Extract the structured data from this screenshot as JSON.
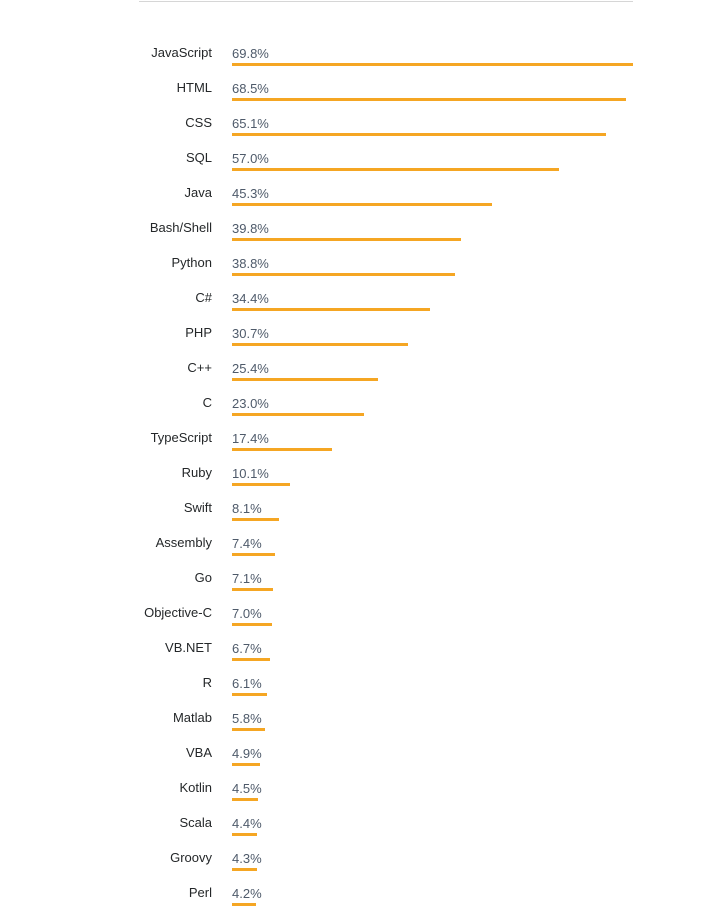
{
  "chart_data": {
    "type": "bar",
    "orientation": "horizontal",
    "title": "",
    "xlabel": "",
    "ylabel": "",
    "grid": false,
    "legend": null,
    "bar_color": "#f5a623",
    "categories": [
      "JavaScript",
      "HTML",
      "CSS",
      "SQL",
      "Java",
      "Bash/Shell",
      "Python",
      "C#",
      "PHP",
      "C++",
      "C",
      "TypeScript",
      "Ruby",
      "Swift",
      "Assembly",
      "Go",
      "Objective-C",
      "VB.NET",
      "R",
      "Matlab",
      "VBA",
      "Kotlin",
      "Scala",
      "Groovy",
      "Perl"
    ],
    "values": [
      69.8,
      68.5,
      65.1,
      57.0,
      45.3,
      39.8,
      38.8,
      34.4,
      30.7,
      25.4,
      23.0,
      17.4,
      10.1,
      8.1,
      7.4,
      7.1,
      7.0,
      6.7,
      6.1,
      5.8,
      4.9,
      4.5,
      4.4,
      4.3,
      4.2
    ],
    "labels": [
      "69.8%",
      "68.5%",
      "65.1%",
      "57.0%",
      "45.3%",
      "39.8%",
      "38.8%",
      "34.4%",
      "30.7%",
      "25.4%",
      "23.0%",
      "17.4%",
      "10.1%",
      "8.1%",
      "7.4%",
      "7.1%",
      "7.0%",
      "6.7%",
      "6.1%",
      "5.8%",
      "4.9%",
      "4.5%",
      "4.4%",
      "4.3%",
      "4.2%"
    ],
    "unit": "%"
  }
}
